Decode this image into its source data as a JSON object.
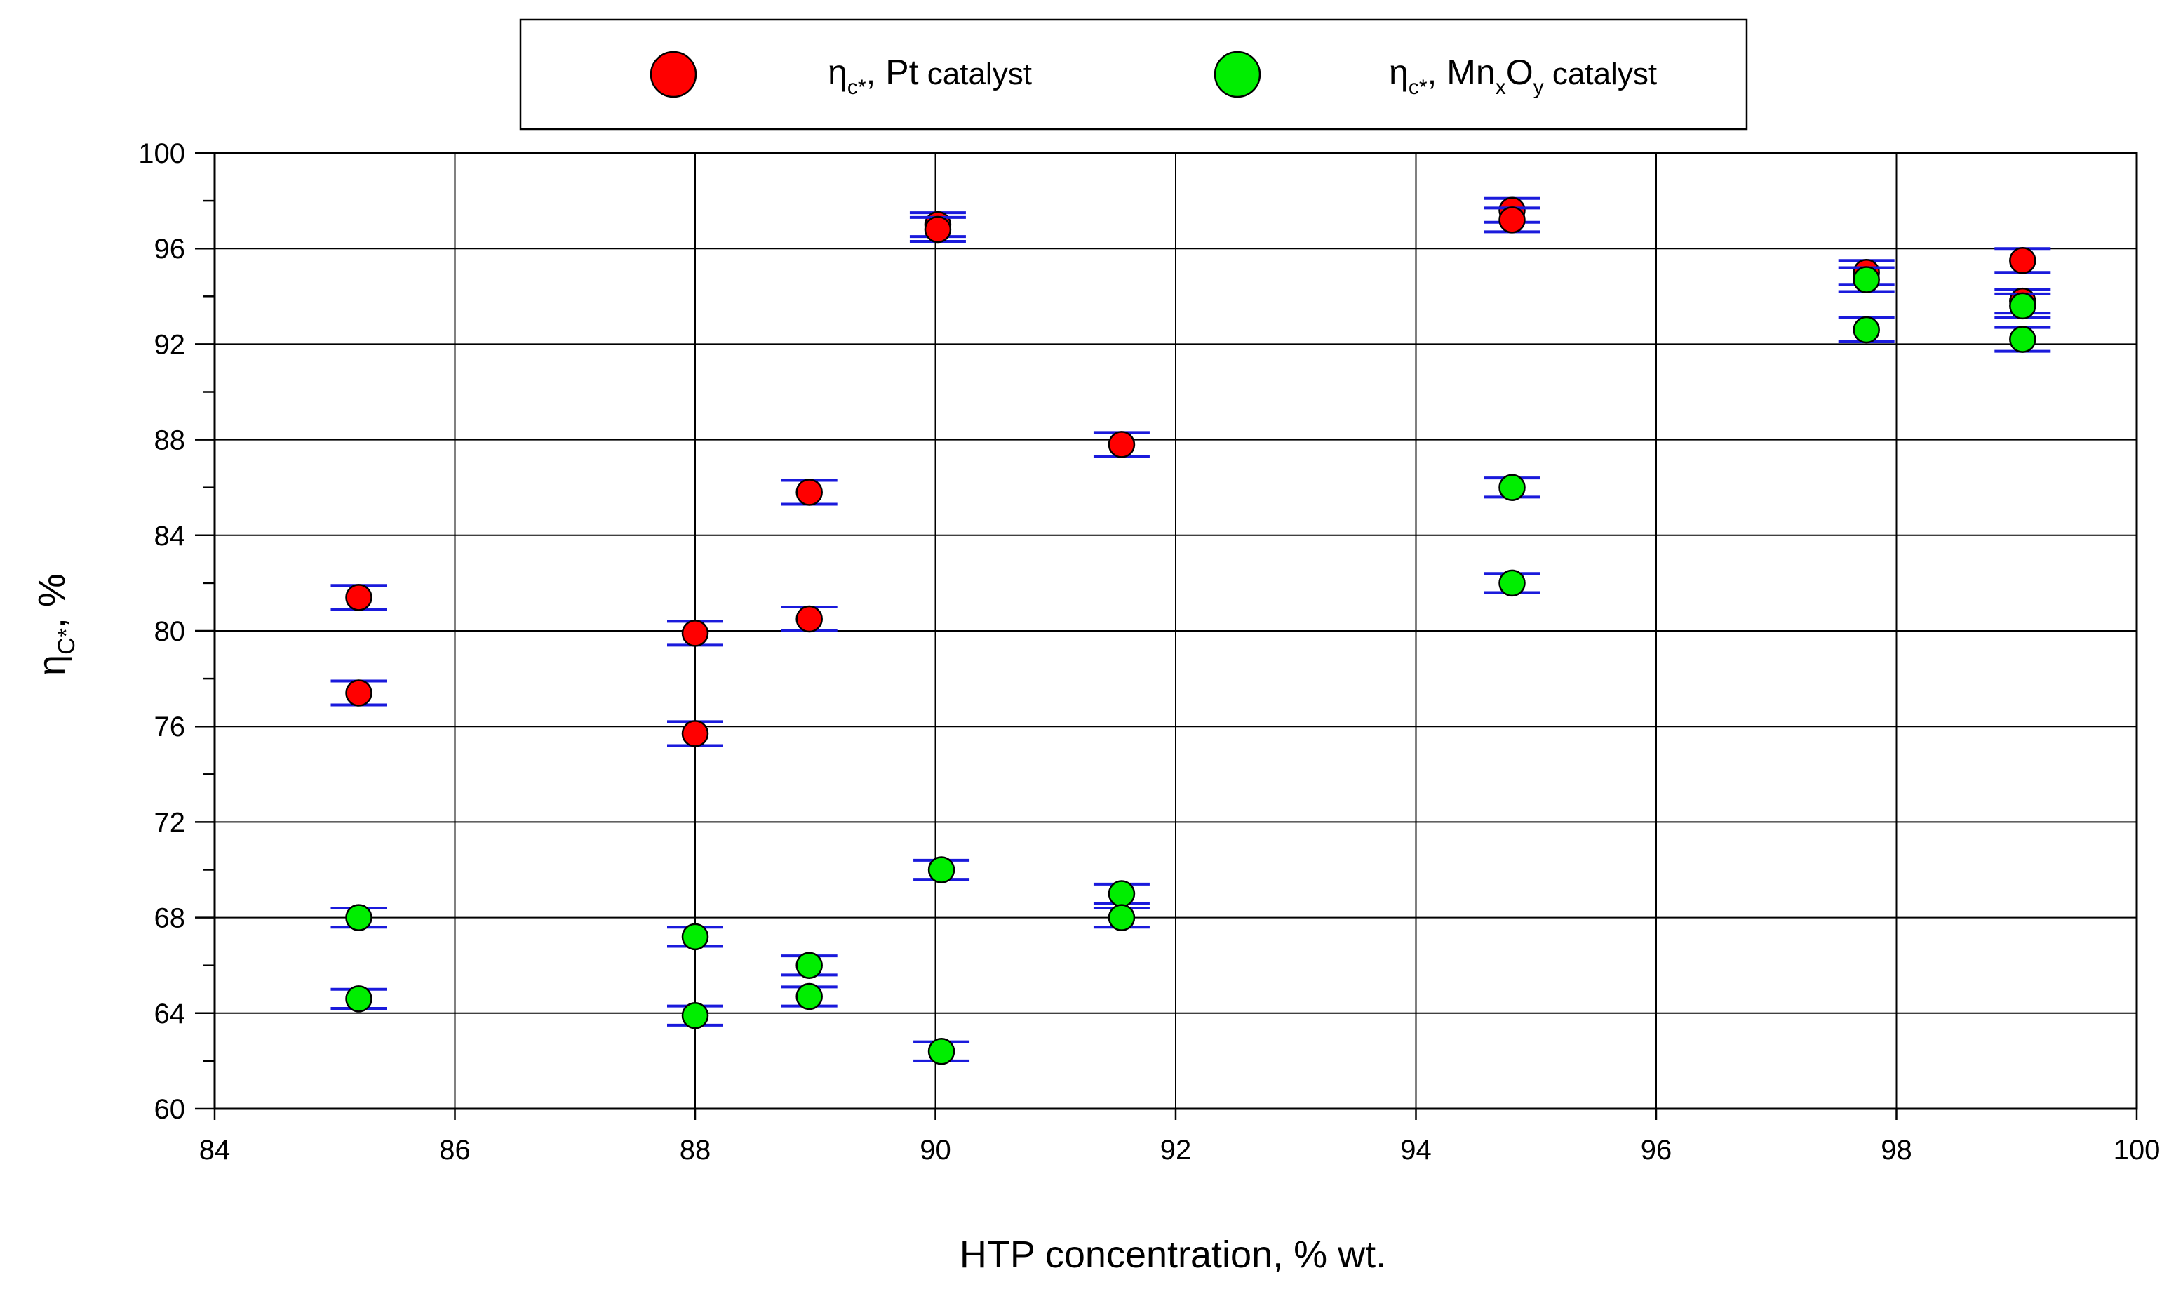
{
  "chart_data": {
    "type": "scatter",
    "title": "",
    "xlabel": "HTP concentration, % wt.",
    "ylabel": {
      "base": "η",
      "sub": "C*",
      "suffix": ", %"
    },
    "xlim": [
      84,
      100
    ],
    "ylim": [
      60,
      100
    ],
    "x_ticks": [
      84,
      86,
      88,
      90,
      92,
      94,
      96,
      98,
      100
    ],
    "y_ticks": [
      60,
      64,
      68,
      72,
      76,
      80,
      84,
      88,
      92,
      96,
      100
    ],
    "y_minor_step": 2,
    "grid": true,
    "legend_position": "top-center",
    "series": [
      {
        "name": "η_c*, Pt catalyst",
        "legend": {
          "base": "η",
          "sub": "c*",
          "mid": ", Pt",
          "tail": " catalyst"
        },
        "color": "#ff0000",
        "error_color": "#1a1adc",
        "points": [
          {
            "x": 85.2,
            "y": 81.4,
            "err": 0.5
          },
          {
            "x": 85.2,
            "y": 77.4,
            "err": 0.5
          },
          {
            "x": 88.0,
            "y": 79.9,
            "err": 0.5
          },
          {
            "x": 88.0,
            "y": 75.7,
            "err": 0.5
          },
          {
            "x": 88.95,
            "y": 85.8,
            "err": 0.5
          },
          {
            "x": 88.95,
            "y": 80.5,
            "err": 0.5
          },
          {
            "x": 90.02,
            "y": 97.0,
            "err": 0.5
          },
          {
            "x": 90.02,
            "y": 96.8,
            "err": 0.5
          },
          {
            "x": 91.55,
            "y": 87.8,
            "err": 0.5
          },
          {
            "x": 94.8,
            "y": 97.6,
            "err": 0.5
          },
          {
            "x": 94.8,
            "y": 97.2,
            "err": 0.5
          },
          {
            "x": 97.75,
            "y": 95.0,
            "err": 0.5
          },
          {
            "x": 99.05,
            "y": 95.5,
            "err": 0.5
          },
          {
            "x": 99.05,
            "y": 93.8,
            "err": 0.5
          }
        ]
      },
      {
        "name": "η_c*, MnxOy catalyst",
        "legend": {
          "base": "η",
          "sub": "c*",
          "mid": ", Mn",
          "sub2": "x",
          "mid2": "O",
          "sub3": "y",
          "tail": " catalyst"
        },
        "color": "#00ee00",
        "error_color": "#1a1adc",
        "points": [
          {
            "x": 85.2,
            "y": 68.0,
            "err": 0.4
          },
          {
            "x": 85.2,
            "y": 64.6,
            "err": 0.4
          },
          {
            "x": 88.0,
            "y": 67.2,
            "err": 0.4
          },
          {
            "x": 88.0,
            "y": 63.9,
            "err": 0.4
          },
          {
            "x": 88.95,
            "y": 66.0,
            "err": 0.4
          },
          {
            "x": 88.95,
            "y": 64.7,
            "err": 0.4
          },
          {
            "x": 90.05,
            "y": 70.0,
            "err": 0.4
          },
          {
            "x": 90.05,
            "y": 62.4,
            "err": 0.4
          },
          {
            "x": 91.55,
            "y": 69.0,
            "err": 0.4
          },
          {
            "x": 91.55,
            "y": 68.0,
            "err": 0.4
          },
          {
            "x": 94.8,
            "y": 86.0,
            "err": 0.4
          },
          {
            "x": 94.8,
            "y": 82.0,
            "err": 0.4
          },
          {
            "x": 97.75,
            "y": 94.7,
            "err": 0.5
          },
          {
            "x": 97.75,
            "y": 92.6,
            "err": 0.5
          },
          {
            "x": 99.05,
            "y": 93.6,
            "err": 0.5
          },
          {
            "x": 99.05,
            "y": 92.2,
            "err": 0.5
          }
        ]
      }
    ]
  }
}
